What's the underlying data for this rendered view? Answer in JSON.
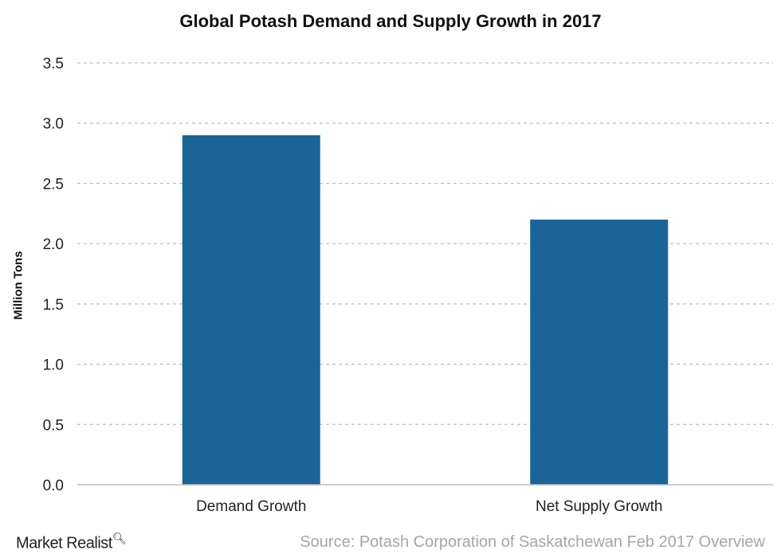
{
  "chart_data": {
    "type": "bar",
    "title": "Global Potash Demand and Supply Growth in 2017",
    "xlabel": "",
    "ylabel": "Million Tons",
    "categories": [
      "Demand Growth",
      "Net Supply Growth"
    ],
    "values": [
      2.9,
      2.2
    ],
    "ylim": [
      0,
      3.5
    ],
    "yticks": [
      "0.0",
      "0.5",
      "1.0",
      "1.5",
      "2.0",
      "2.5",
      "3.0",
      "3.5"
    ],
    "grid": true,
    "bar_color": "#1b6497"
  },
  "footer": {
    "logo": "Market Realist",
    "source": "Source: Potash Corporation of Saskatchewan Feb 2017 Overview"
  }
}
